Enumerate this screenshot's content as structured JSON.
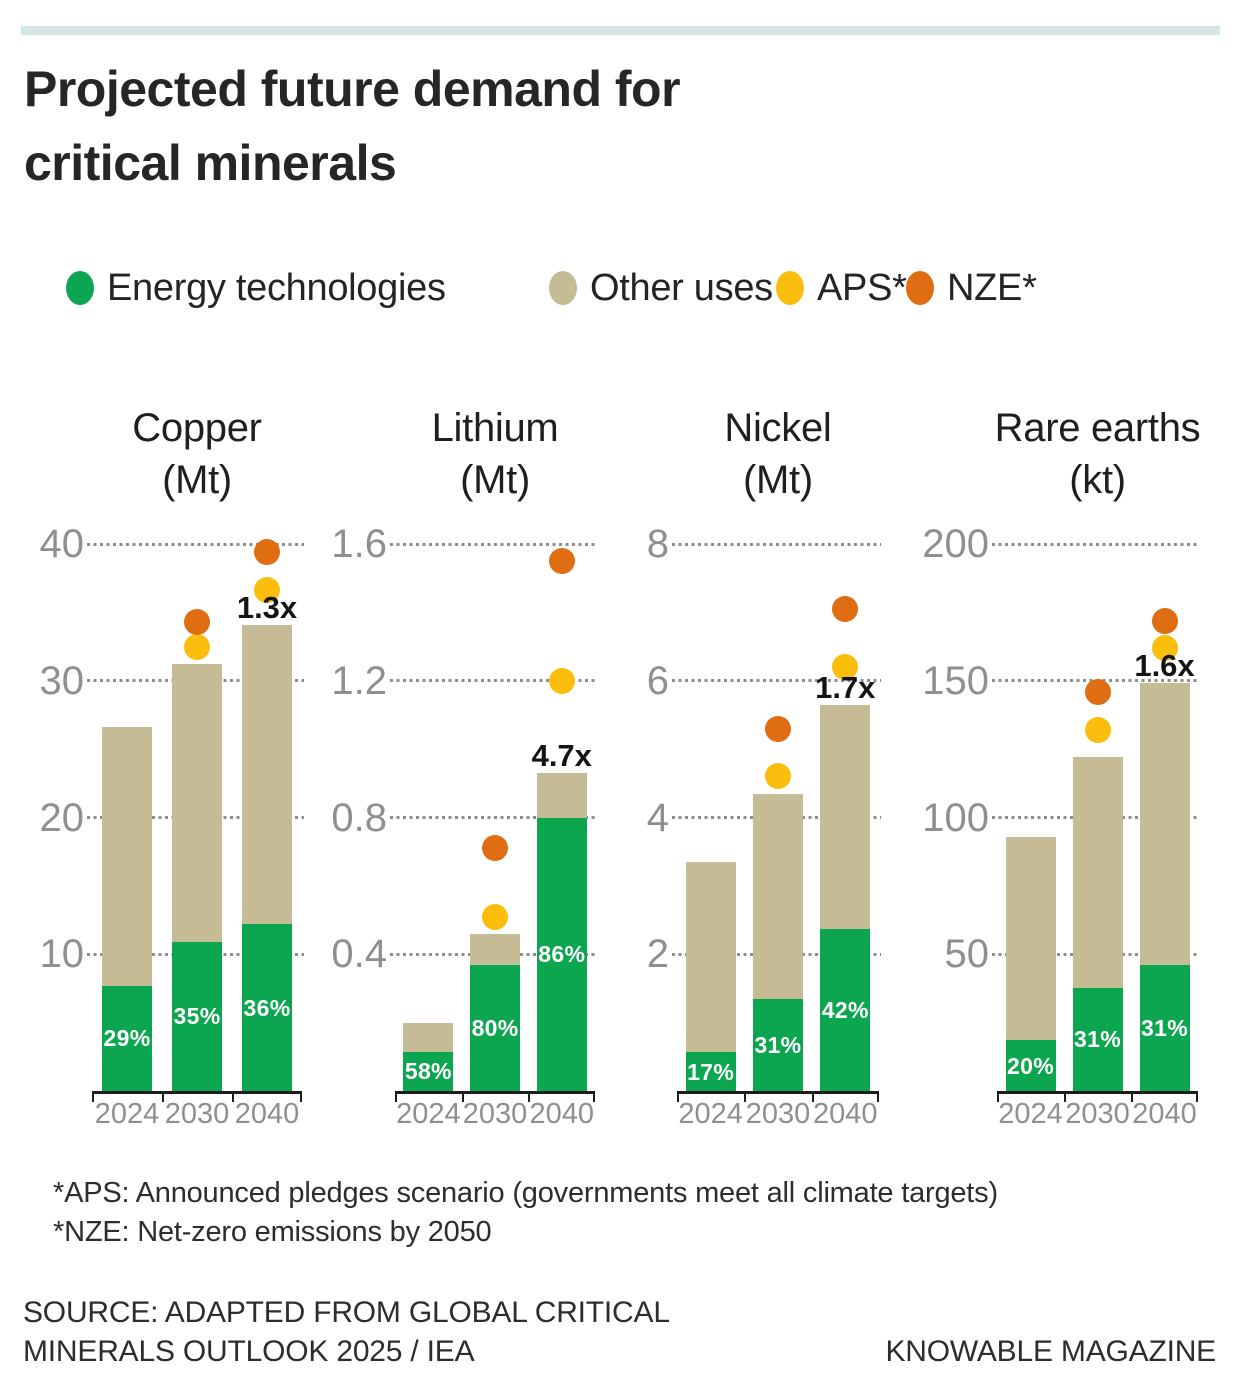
{
  "title_line1": "Projected future demand for",
  "title_line2": "critical minerals",
  "colors": {
    "energy": "#0ba64f",
    "other": "#c5bc96",
    "aps": "#fcbe0d",
    "nze": "#df6d12",
    "accent_bar": "#d5e6e7",
    "axis_text": "#8f8f8f",
    "grid_dot": "#8e8e8e"
  },
  "legend": {
    "items": [
      {
        "label": "Energy technologies",
        "color": "#0ba64f"
      },
      {
        "label": "Other uses",
        "color": "#c5bc96"
      },
      {
        "label": "APS*",
        "color": "#fcbe0d"
      },
      {
        "label": "NZE*",
        "color": "#df6d12"
      }
    ]
  },
  "chart_data": [
    {
      "type": "bar",
      "title": "Copper",
      "unit": "(Mt)",
      "categories": [
        "2024",
        "2030",
        "2040"
      ],
      "axis_max": 40,
      "ticks": [
        "40",
        "30",
        "20",
        "10"
      ],
      "totals": [
        26.6,
        31.2,
        34.1
      ],
      "series": [
        {
          "name": "Energy technologies",
          "values": [
            7.7,
            10.9,
            12.2
          ]
        },
        {
          "name": "Other uses",
          "values": [
            18.9,
            20.3,
            21.9
          ]
        }
      ],
      "energy_share_labels": [
        "29%",
        "35%",
        "36%"
      ],
      "aps_points": [
        null,
        32.5,
        36.6
      ],
      "nze_points": [
        null,
        34.3,
        39.4
      ],
      "multiplier_label": "1.3x",
      "multiplier_category": "2040"
    },
    {
      "type": "bar",
      "title": "Lithium",
      "unit": "(Mt)",
      "categories": [
        "2024",
        "2030",
        "2040"
      ],
      "axis_max": 1.6,
      "ticks": [
        "1.6",
        "1.2",
        "0.8",
        "0.4"
      ],
      "totals": [
        0.2,
        0.46,
        0.93
      ],
      "series": [
        {
          "name": "Energy technologies",
          "values": [
            0.115,
            0.37,
            0.8
          ]
        },
        {
          "name": "Other uses",
          "values": [
            0.085,
            0.09,
            0.13
          ]
        }
      ],
      "energy_share_labels": [
        "58%",
        "80%",
        "86%"
      ],
      "aps_points": [
        null,
        0.51,
        1.2
      ],
      "nze_points": [
        null,
        0.71,
        1.55
      ],
      "multiplier_label": "4.7x",
      "multiplier_category": "2040"
    },
    {
      "type": "bar",
      "title": "Nickel",
      "unit": "(Mt)",
      "categories": [
        "2024",
        "2030",
        "2040"
      ],
      "axis_max": 8,
      "ticks": [
        "8",
        "6",
        "4",
        "2"
      ],
      "totals": [
        3.35,
        4.35,
        5.65
      ],
      "series": [
        {
          "name": "Energy technologies",
          "values": [
            0.57,
            1.35,
            2.37
          ]
        },
        {
          "name": "Other uses",
          "values": [
            2.78,
            3.0,
            3.28
          ]
        }
      ],
      "energy_share_labels": [
        "17%",
        "31%",
        "42%"
      ],
      "aps_points": [
        null,
        4.6,
        6.2
      ],
      "nze_points": [
        null,
        5.3,
        7.05
      ],
      "multiplier_label": "1.7x",
      "multiplier_category": "2040"
    },
    {
      "type": "bar",
      "title": "Rare earths",
      "unit": "(kt)",
      "categories": [
        "2024",
        "2030",
        "2040"
      ],
      "axis_max": 200,
      "ticks": [
        "200",
        "150",
        "100",
        "50"
      ],
      "totals": [
        93,
        122,
        149
      ],
      "series": [
        {
          "name": "Energy technologies",
          "values": [
            18.6,
            37.8,
            46.2
          ]
        },
        {
          "name": "Other uses",
          "values": [
            74.4,
            84.2,
            102.8
          ]
        }
      ],
      "energy_share_labels": [
        "20%",
        "31%",
        "31%"
      ],
      "aps_points": [
        null,
        132,
        162
      ],
      "nze_points": [
        null,
        146,
        172
      ],
      "multiplier_label": "1.6x",
      "multiplier_category": "2040"
    }
  ],
  "footnotes": {
    "line1": "*APS: Announced pledges scenario (governments meet all climate targets)",
    "line2": "*NZE: Net-zero emissions by 2050"
  },
  "source_line1": "SOURCE: ADAPTED FROM GLOBAL CRITICAL",
  "source_line2": "MINERALS OUTLOOK 2025 / IEA",
  "credit": "KNOWABLE MAGAZINE"
}
